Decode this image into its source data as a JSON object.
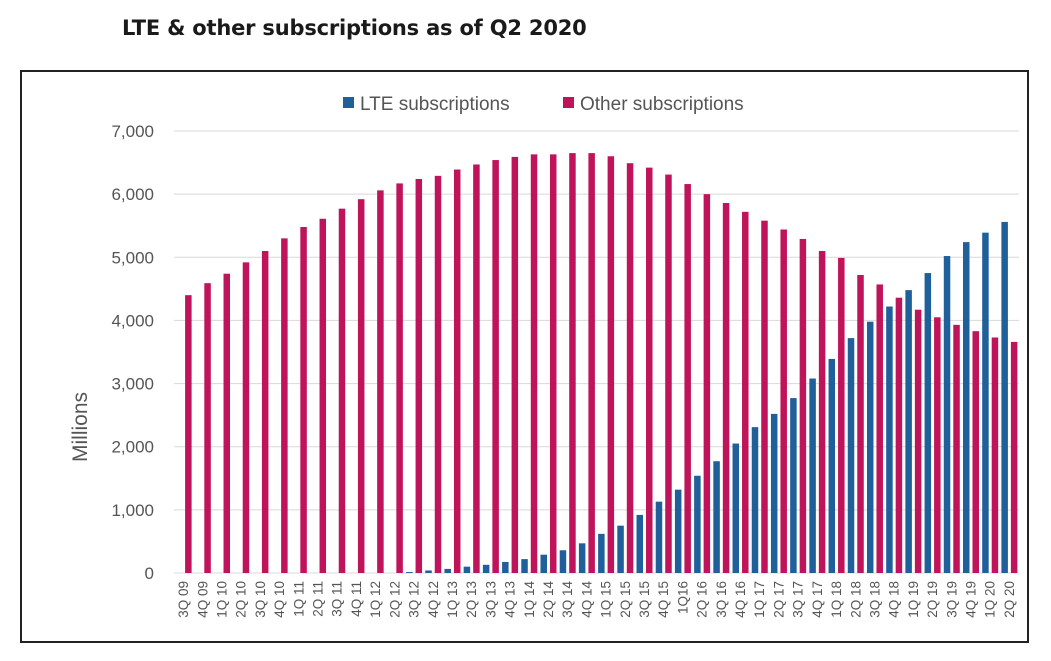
{
  "page": {
    "title": "LTE & other subscriptions as of Q2 2020"
  },
  "chart_data": {
    "type": "bar",
    "title": "LTE & other subscriptions as of Q2 2020",
    "xlabel": "",
    "ylabel": "Millions",
    "ylim": [
      0,
      7000
    ],
    "yticks": [
      0,
      1000,
      2000,
      3000,
      4000,
      5000,
      6000,
      7000
    ],
    "ytick_labels": [
      "0",
      "1,000",
      "2,000",
      "3,000",
      "4,000",
      "5,000",
      "6,000",
      "7,000"
    ],
    "grid": true,
    "legend_position": "top-center",
    "categories": [
      "3Q 09",
      "4Q 09",
      "1Q 10",
      "2Q 10",
      "3Q 10",
      "4Q 10",
      "1Q 11",
      "2Q 11",
      "3Q 11",
      "4Q 11",
      "1Q 12",
      "2Q 12",
      "3Q 12",
      "4Q 12",
      "1Q 13",
      "2Q 13",
      "3Q 13",
      "4Q 13",
      "1Q 14",
      "2Q 14",
      "3Q 14",
      "4Q 14",
      "1Q 15",
      "2Q 15",
      "3Q 15",
      "4Q 15",
      "1Q16",
      "2Q 16",
      "3Q 16",
      "4Q 16",
      "1Q 17",
      "2Q 17",
      "3Q 17",
      "4Q 17",
      "1Q 18",
      "2Q 18",
      "3Q 18",
      "4Q 18",
      "1Q 19",
      "2Q 19",
      "3Q 19",
      "4Q 19",
      "1Q 20",
      "2Q 20"
    ],
    "series": [
      {
        "name": "LTE subscriptions",
        "color": "#1f5f9a",
        "values": [
          0,
          0,
          0,
          0,
          0,
          0,
          0,
          0,
          0,
          0,
          0,
          0,
          15,
          40,
          65,
          100,
          130,
          175,
          220,
          290,
          360,
          470,
          620,
          750,
          920,
          1130,
          1320,
          1540,
          1770,
          2050,
          2310,
          2520,
          2770,
          3080,
          3390,
          3720,
          3980,
          4220,
          4480,
          4750,
          5020,
          5240,
          5390,
          5560
        ]
      },
      {
        "name": "Other subscriptions",
        "color": "#c0145a",
        "values": [
          4400,
          4590,
          4740,
          4920,
          5100,
          5300,
          5480,
          5610,
          5770,
          5920,
          6060,
          6170,
          6240,
          6290,
          6390,
          6470,
          6540,
          6590,
          6630,
          6630,
          6650,
          6650,
          6600,
          6490,
          6420,
          6310,
          6160,
          6000,
          5860,
          5720,
          5580,
          5440,
          5290,
          5100,
          4990,
          4720,
          4570,
          4360,
          4170,
          4050,
          3930,
          3830,
          3730,
          3660
        ]
      }
    ]
  }
}
